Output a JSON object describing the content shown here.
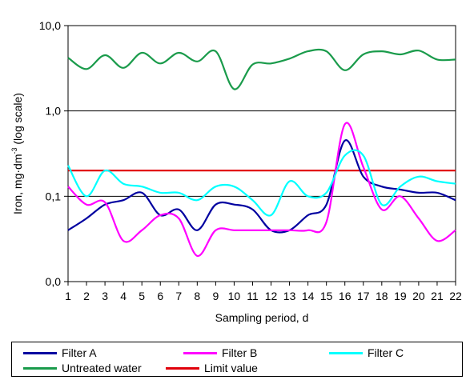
{
  "chart_data": {
    "type": "line",
    "xlabel": "Sampling period, d",
    "ylabel": "Iron, mg·dm",
    "ylabel_sup": "-3",
    "ylabel_suffix": " (log scale)",
    "x": [
      1,
      2,
      3,
      4,
      5,
      6,
      7,
      8,
      9,
      10,
      11,
      12,
      13,
      14,
      15,
      16,
      17,
      18,
      19,
      20,
      21,
      22
    ],
    "xlim": [
      1,
      22
    ],
    "ylim": [
      0.01,
      10
    ],
    "y_scale": "log",
    "y_ticks": [
      {
        "value": 0.01,
        "label": "0,0"
      },
      {
        "value": 0.1,
        "label": "0,1"
      },
      {
        "value": 1,
        "label": "1,0"
      },
      {
        "value": 10,
        "label": "10,0"
      }
    ],
    "grid": "horizontal",
    "legend_position": "bottom",
    "series": [
      {
        "name": "Filter A",
        "color": "#0000a0",
        "values": [
          0.04,
          0.055,
          0.08,
          0.09,
          0.11,
          0.06,
          0.07,
          0.04,
          0.08,
          0.08,
          0.07,
          0.04,
          0.04,
          0.06,
          0.08,
          0.45,
          0.17,
          0.13,
          0.12,
          0.11,
          0.11,
          0.09
        ]
      },
      {
        "name": "Filter B",
        "color": "#ff00ff",
        "values": [
          0.13,
          0.08,
          0.085,
          0.03,
          0.04,
          0.06,
          0.055,
          0.02,
          0.04,
          0.04,
          0.04,
          0.04,
          0.04,
          0.04,
          0.05,
          0.7,
          0.22,
          0.07,
          0.1,
          0.055,
          0.03,
          0.04
        ]
      },
      {
        "name": "Filter C",
        "color": "#00ffff",
        "values": [
          0.23,
          0.1,
          0.2,
          0.14,
          0.13,
          0.11,
          0.11,
          0.09,
          0.13,
          0.13,
          0.09,
          0.06,
          0.15,
          0.1,
          0.11,
          0.3,
          0.3,
          0.08,
          0.13,
          0.17,
          0.15,
          0.14
        ]
      },
      {
        "name": "Untreated water",
        "color": "#1a9b4b",
        "values": [
          4.2,
          3.1,
          4.5,
          3.2,
          4.8,
          3.6,
          4.8,
          3.8,
          5.0,
          1.8,
          3.5,
          3.6,
          4.1,
          5.0,
          5.0,
          3.0,
          4.6,
          5.0,
          4.6,
          5.1,
          4.0,
          4.0
        ]
      },
      {
        "name": "Limit value",
        "color": "#e0000a",
        "values": [
          0.2,
          0.2,
          0.2,
          0.2,
          0.2,
          0.2,
          0.2,
          0.2,
          0.2,
          0.2,
          0.2,
          0.2,
          0.2,
          0.2,
          0.2,
          0.2,
          0.2,
          0.2,
          0.2,
          0.2,
          0.2,
          0.2
        ]
      }
    ]
  }
}
